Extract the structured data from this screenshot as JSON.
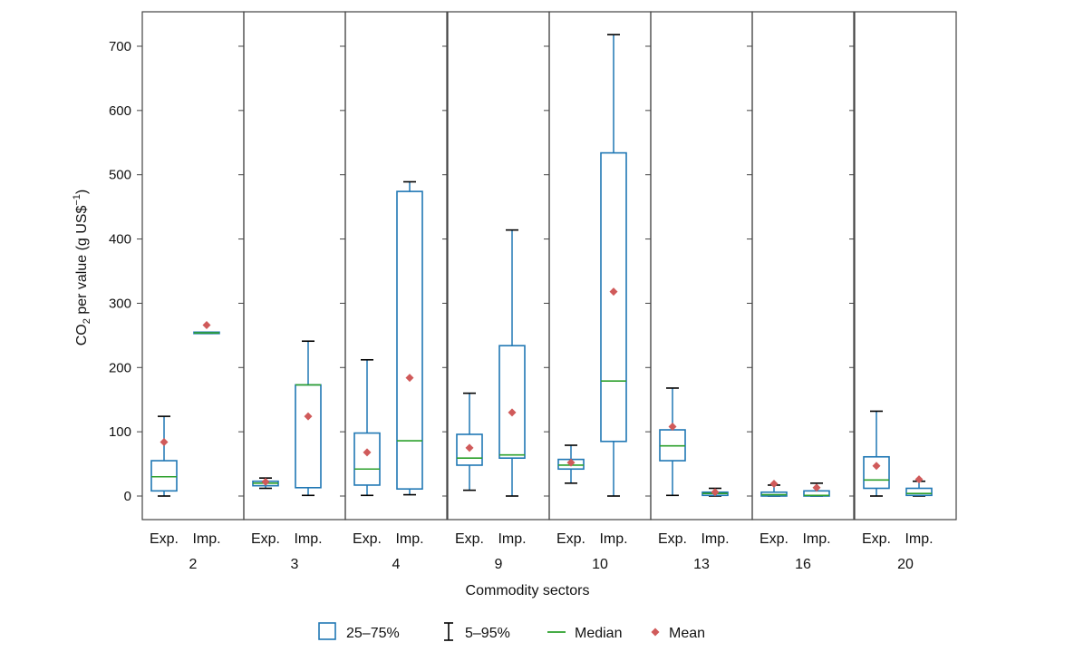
{
  "chart_data": {
    "type": "box",
    "ylabel": {
      "base": "CO",
      "sub": "2",
      "mid": " per value (g US$",
      "sup": "−1",
      "end": ")"
    },
    "xlabel": "Commodity sectors",
    "ylim": [
      -35,
      755
    ],
    "yticks": [
      0,
      100,
      200,
      300,
      400,
      500,
      600,
      700
    ],
    "categories": [
      "Exp.",
      "Imp."
    ],
    "colors": {
      "box": "#1f77b4",
      "median": "#2ca02c",
      "mean": "#d05a5a",
      "whisker": "#000000",
      "frame": "#444444"
    },
    "legend": {
      "position": "bottom",
      "items": [
        {
          "key": "box",
          "label": "25–75%"
        },
        {
          "key": "whisker",
          "label": "5–95%"
        },
        {
          "key": "median",
          "label": "Median"
        },
        {
          "key": "mean",
          "label": "Mean"
        }
      ]
    },
    "panels": [
      {
        "sector": "2",
        "groups": [
          {
            "label": "Exp.",
            "p5": 0,
            "q1": 8,
            "median": 30,
            "q3": 55,
            "p95": 124,
            "mean": 84
          },
          {
            "label": "Imp.",
            "p5": 253,
            "q1": 253,
            "median": 254,
            "q3": 255,
            "p95": 255,
            "mean": 266
          }
        ]
      },
      {
        "sector": "3",
        "groups": [
          {
            "label": "Exp.",
            "p5": 12,
            "q1": 16,
            "median": 20,
            "q3": 23,
            "p95": 28,
            "mean": 22
          },
          {
            "label": "Imp.",
            "p5": 1,
            "q1": 13,
            "median": 173,
            "q3": 173,
            "p95": 241,
            "mean": 124
          }
        ]
      },
      {
        "sector": "4",
        "groups": [
          {
            "label": "Exp.",
            "p5": 1,
            "q1": 17,
            "median": 42,
            "q3": 98,
            "p95": 212,
            "mean": 68
          },
          {
            "label": "Imp.",
            "p5": 2,
            "q1": 11,
            "median": 86,
            "q3": 474,
            "p95": 489,
            "mean": 184
          }
        ]
      },
      {
        "sector": "9",
        "groups": [
          {
            "label": "Exp.",
            "p5": 9,
            "q1": 48,
            "median": 59,
            "q3": 96,
            "p95": 160,
            "mean": 75
          },
          {
            "label": "Imp.",
            "p5": 0,
            "q1": 59,
            "median": 64,
            "q3": 234,
            "p95": 414,
            "mean": 130
          }
        ]
      },
      {
        "sector": "10",
        "groups": [
          {
            "label": "Exp.",
            "p5": 20,
            "q1": 42,
            "median": 48,
            "q3": 57,
            "p95": 79,
            "mean": 52
          },
          {
            "label": "Imp.",
            "p5": 0,
            "q1": 85,
            "median": 179,
            "q3": 534,
            "p95": 718,
            "mean": 318
          }
        ]
      },
      {
        "sector": "13",
        "groups": [
          {
            "label": "Exp.",
            "p5": 1,
            "q1": 55,
            "median": 78,
            "q3": 103,
            "p95": 168,
            "mean": 108
          },
          {
            "label": "Imp.",
            "p5": 0,
            "q1": 1,
            "median": 4,
            "q3": 6,
            "p95": 12,
            "mean": 6
          }
        ]
      },
      {
        "sector": "16",
        "groups": [
          {
            "label": "Exp.",
            "p5": 0,
            "q1": 0,
            "median": 2,
            "q3": 6,
            "p95": 17,
            "mean": 19
          },
          {
            "label": "Imp.",
            "p5": 0,
            "q1": 0,
            "median": 1,
            "q3": 8,
            "p95": 20,
            "mean": 13
          }
        ]
      },
      {
        "sector": "20",
        "groups": [
          {
            "label": "Exp.",
            "p5": 0,
            "q1": 12,
            "median": 25,
            "q3": 61,
            "p95": 132,
            "mean": 47
          },
          {
            "label": "Imp.",
            "p5": 0,
            "q1": 1,
            "median": 4,
            "q3": 12,
            "p95": 23,
            "mean": 26
          }
        ]
      }
    ]
  }
}
